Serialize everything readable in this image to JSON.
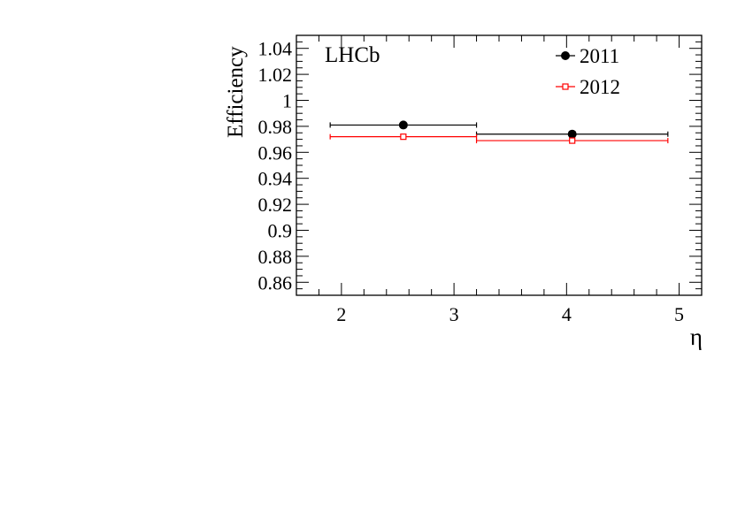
{
  "chart_data": {
    "type": "scatter",
    "experiment_label": "LHCb",
    "xlabel": "η",
    "ylabel": "Efficiency",
    "xlim": [
      1.6,
      5.2
    ],
    "ylim": [
      0.85,
      1.05
    ],
    "x_major_ticks": [
      2,
      3,
      4,
      5
    ],
    "x_tick_labels": [
      "2",
      "3",
      "4",
      "5"
    ],
    "y_major_ticks": [
      0.86,
      0.88,
      0.9,
      0.92,
      0.94,
      0.96,
      0.98,
      1.0,
      1.02,
      1.04
    ],
    "y_tick_labels": [
      "0.86",
      "0.88",
      "0.9",
      "0.92",
      "0.94",
      "0.96",
      "0.98",
      "1",
      "1.02",
      "1.04"
    ],
    "grid": false,
    "legend_position": "top-right",
    "series": [
      {
        "name": "2011",
        "color": "#000000",
        "marker": "filled-circle",
        "points": [
          {
            "x": 2.55,
            "x_low": 1.9,
            "x_high": 3.2,
            "y": 0.981
          },
          {
            "x": 4.05,
            "x_low": 3.2,
            "x_high": 4.9,
            "y": 0.974
          }
        ]
      },
      {
        "name": "2012",
        "color": "#ff0000",
        "marker": "open-square",
        "points": [
          {
            "x": 2.55,
            "x_low": 1.9,
            "x_high": 3.2,
            "y": 0.972
          },
          {
            "x": 4.05,
            "x_low": 3.2,
            "x_high": 4.9,
            "y": 0.969
          }
        ]
      }
    ]
  }
}
